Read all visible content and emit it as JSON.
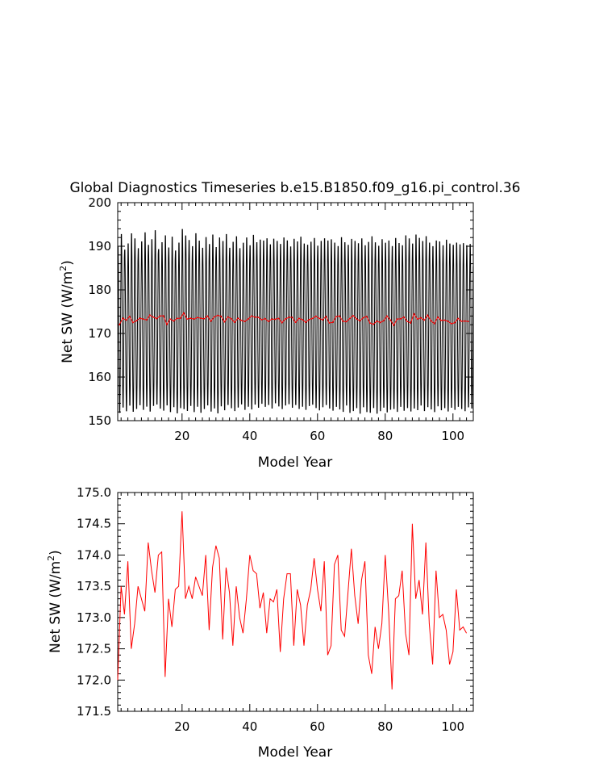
{
  "title": "Global Diagnostics Timeseries b.e15.B1850.f09_g16.pi_control.36",
  "chart_data": [
    {
      "type": "line",
      "xlabel": "Model Year",
      "ylabel_main": "Net SW (W/m",
      "ylabel_sup": "2",
      "ylabel_close": ")",
      "xlim": [
        1,
        106
      ],
      "ylim": [
        150,
        200
      ],
      "xticks": [
        20,
        40,
        60,
        80,
        100
      ],
      "yticks": [
        150,
        160,
        170,
        180,
        190,
        200
      ],
      "colors": {
        "monthly": "#000000",
        "annual": "#ff0000"
      },
      "monthly": {
        "years": 105,
        "months_per_year": 12,
        "annual_max": [
          190.5,
          193.4,
          189.8,
          191.2,
          193.6,
          192.4,
          190.1,
          191.7,
          193.8,
          190.9,
          192.2,
          194.3,
          189.9,
          191.5,
          193.1,
          190.3,
          192.8,
          189.6,
          191.4,
          194.6,
          193.1,
          192.0,
          190.6,
          193.6,
          191.9,
          190.2,
          192.7,
          191.1,
          193.3,
          190.4,
          192.6,
          191.8,
          193.4,
          190.2,
          191.6,
          192.9,
          190.1,
          191.4,
          192.6,
          190.8,
          193.2,
          191.5,
          192.1,
          191.9,
          192.4,
          191.0,
          192.3,
          191.8,
          191.1,
          192.6,
          191.9,
          190.5,
          192.3,
          191.7,
          192.8,
          191.2,
          190.9,
          191.6,
          192.5,
          190.7,
          191.8,
          192.4,
          191.9,
          192.2,
          191.4,
          190.6,
          192.7,
          191.5,
          190.9,
          192.3,
          191.8,
          191.3,
          192.4,
          190.8,
          191.6,
          192.9,
          191.5,
          190.7,
          192.2,
          191.4,
          191.9,
          190.6,
          192.5,
          191.3,
          190.8,
          193.1,
          192.4,
          191.2,
          193.3,
          192.5,
          191.8,
          192.9,
          191.4,
          190.6,
          191.9,
          191.7,
          190.8,
          192.1,
          191.2,
          190.9,
          191.4,
          191.0,
          191.3,
          190.8,
          191.1
        ],
        "annual_min": [
          151.2,
          152.4,
          151.6,
          152.9,
          151.4,
          152.1,
          153.0,
          151.9,
          152.6,
          151.5,
          152.8,
          153.1,
          152.2,
          151.7,
          152.9,
          151.4,
          152.5,
          151.1,
          152.3,
          152.0,
          151.6,
          152.8,
          151.4,
          152.6,
          151.2,
          152.1,
          152.9,
          151.5,
          152.2,
          151.1,
          152.7,
          151.8,
          153.0,
          152.3,
          151.6,
          152.4,
          153.2,
          151.9,
          152.6,
          152.0,
          153.1,
          152.4,
          153.3,
          152.6,
          153.0,
          152.2,
          153.4,
          152.7,
          152.1,
          152.9,
          153.2,
          152.4,
          153.0,
          152.1,
          152.6,
          151.9,
          152.8,
          153.1,
          152.3,
          151.8,
          152.5,
          153.0,
          152.2,
          151.7,
          152.6,
          152.0,
          151.4,
          152.9,
          151.2,
          151.6,
          152.3,
          151.0,
          152.5,
          151.4,
          151.2,
          152.3,
          151.0,
          151.6,
          152.4,
          151.3,
          151.9,
          152.1,
          151.4,
          152.6,
          151.7,
          152.3,
          151.5,
          152.2,
          151.8,
          152.9,
          151.6,
          152.5,
          152.0,
          151.4,
          152.7,
          151.8,
          152.3,
          151.5,
          152.4,
          151.9,
          152.6,
          152.1,
          151.6,
          152.5,
          152.2
        ]
      },
      "annual_values": [
        172.0,
        173.5,
        173.05,
        173.9,
        172.5,
        172.9,
        173.5,
        173.3,
        173.1,
        174.2,
        173.75,
        173.4,
        174.0,
        174.05,
        172.05,
        173.3,
        172.85,
        173.45,
        173.5,
        174.7,
        173.3,
        173.5,
        173.3,
        173.65,
        173.5,
        173.35,
        174.0,
        172.8,
        173.8,
        174.15,
        173.95,
        172.65,
        173.8,
        173.4,
        172.55,
        173.5,
        173.0,
        172.75,
        173.3,
        174.0,
        173.75,
        173.7,
        173.15,
        173.4,
        172.75,
        173.3,
        173.25,
        173.45,
        172.45,
        173.3,
        173.7,
        173.7,
        172.55,
        173.45,
        173.2,
        172.55,
        173.2,
        173.45,
        173.95,
        173.45,
        173.1,
        173.9,
        172.4,
        172.55,
        173.85,
        174.0,
        172.8,
        172.7,
        173.4,
        174.1,
        173.35,
        172.9,
        173.6,
        173.9,
        172.4,
        172.1,
        172.85,
        172.5,
        172.9,
        174.0,
        173.1,
        171.85,
        173.3,
        173.35,
        173.75,
        172.75,
        172.4,
        174.5,
        173.3,
        173.6,
        173.05,
        174.2,
        172.9,
        172.25,
        173.75,
        173.0,
        173.05,
        172.8,
        172.25,
        172.45,
        173.45,
        172.8,
        172.85,
        172.75
      ]
    },
    {
      "type": "line",
      "xlabel": "Model Year",
      "ylabel_main": "Net SW (W/m",
      "ylabel_sup": "2",
      "ylabel_close": ")",
      "xlim": [
        1,
        106
      ],
      "ylim": [
        171.5,
        175.0
      ],
      "xticks": [
        20,
        40,
        60,
        80,
        100
      ],
      "yticks": [
        171.5,
        172.0,
        172.5,
        173.0,
        173.5,
        174.0,
        174.5,
        175.0
      ],
      "colors": {
        "annual": "#ff0000"
      },
      "annual_values": [
        172.0,
        173.5,
        173.05,
        173.9,
        172.5,
        172.9,
        173.5,
        173.3,
        173.1,
        174.2,
        173.75,
        173.4,
        174.0,
        174.05,
        172.05,
        173.3,
        172.85,
        173.45,
        173.5,
        174.7,
        173.3,
        173.5,
        173.3,
        173.65,
        173.5,
        173.35,
        174.0,
        172.8,
        173.8,
        174.15,
        173.95,
        172.65,
        173.8,
        173.4,
        172.55,
        173.5,
        173.0,
        172.75,
        173.3,
        174.0,
        173.75,
        173.7,
        173.15,
        173.4,
        172.75,
        173.3,
        173.25,
        173.45,
        172.45,
        173.3,
        173.7,
        173.7,
        172.55,
        173.45,
        173.2,
        172.55,
        173.2,
        173.45,
        173.95,
        173.45,
        173.1,
        173.9,
        172.4,
        172.55,
        173.85,
        174.0,
        172.8,
        172.7,
        173.4,
        174.1,
        173.35,
        172.9,
        173.6,
        173.9,
        172.4,
        172.1,
        172.85,
        172.5,
        172.9,
        174.0,
        173.1,
        171.85,
        173.3,
        173.35,
        173.75,
        172.75,
        172.4,
        174.5,
        173.3,
        173.6,
        173.05,
        174.2,
        172.9,
        172.25,
        173.75,
        173.0,
        173.05,
        172.8,
        172.25,
        172.45,
        173.45,
        172.8,
        172.85,
        172.75
      ]
    }
  ]
}
